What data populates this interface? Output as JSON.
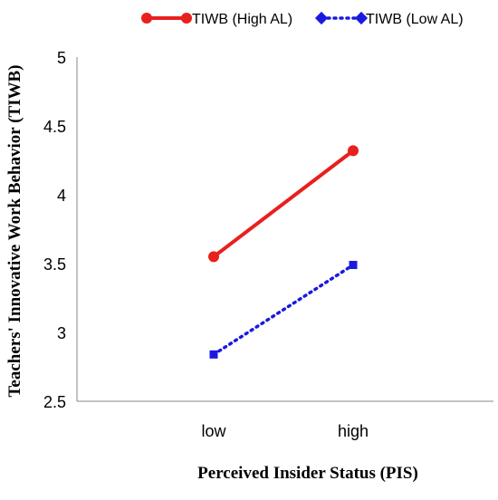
{
  "chart_data": {
    "type": "line",
    "categories": [
      "low",
      "high"
    ],
    "series": [
      {
        "name": "TIWB (High AL)",
        "values": [
          3.55,
          4.32
        ],
        "color": "#e8201e",
        "line": "solid",
        "marker": "circle"
      },
      {
        "name": "TIWB (Low AL)",
        "values": [
          2.84,
          3.49
        ],
        "color": "#1a1adf",
        "line": "dotted",
        "marker": "diamond"
      }
    ],
    "xlabel": "Perceived Insider Status (PIS)",
    "ylabel": "Teachers' Innovative Work Behavior (TIWB)",
    "ylim": [
      2.5,
      5
    ],
    "yticks": [
      "2.5",
      "3",
      "3.5",
      "4",
      "4.5",
      "5"
    ],
    "grid": false,
    "legend_position": "top"
  }
}
